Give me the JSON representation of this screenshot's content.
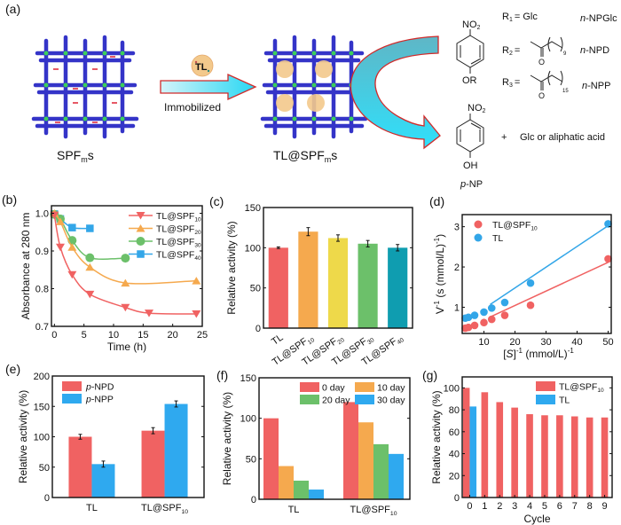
{
  "figure": {
    "panel_labels": [
      "(a)",
      "(b)",
      "(c)",
      "(d)",
      "(e)",
      "(f)",
      "(g)"
    ]
  },
  "scheme": {
    "left_label": "SPF",
    "left_label_sub": "m",
    "left_label_suffix": "s",
    "enzyme_label": "TL",
    "arrow_label": "Immobilized",
    "right_label": "TL@SPF",
    "right_label_sub": "m",
    "right_label_suffix": "s",
    "substrate_top": "NO",
    "substrate_top_sub": "2",
    "substrate_bottom": "OR",
    "r_groups": [
      {
        "r": "R",
        "sub": "1",
        "value": "= Glc",
        "name": "n-NPGlc",
        "name_italic": "n",
        "name_rest": "-NPGlc"
      },
      {
        "r": "R",
        "sub": "2",
        "value": "=",
        "chain": "9",
        "name": "n-NPD",
        "name_italic": "n",
        "name_rest": "-NPD"
      },
      {
        "r": "R",
        "sub": "3",
        "value": "=",
        "chain": "15",
        "name": "n-NPP",
        "name_italic": "n",
        "name_rest": "-NPP"
      }
    ],
    "carbonyl_o": "O",
    "product_top": "NO",
    "product_top_sub": "2",
    "product_bottom": "OH",
    "product_name_italic": "p",
    "product_name_rest": "-NP",
    "plus_text": "+",
    "byproduct": "Glc or aliphatic acid"
  },
  "chart_data": [
    {
      "id": "b",
      "type": "line",
      "xlabel": "Time (h)",
      "ylabel": "Absorbance at 280 nm",
      "xlim": [
        -0.5,
        25
      ],
      "ylim": [
        0.7,
        1.02
      ],
      "xticks": [
        0,
        5,
        10,
        15,
        20,
        25
      ],
      "yticks": [
        0.7,
        0.8,
        0.9,
        1.0
      ],
      "ytick_labels": [
        "0.7",
        "0.8",
        "0.9",
        "1.0"
      ],
      "legend_position": "top-right",
      "series": [
        {
          "name": "TL@SPF",
          "sub": "10",
          "color": "#f06262",
          "marker": "triangle-down",
          "x": [
            0,
            1,
            3,
            6,
            12,
            16,
            24
          ],
          "y": [
            0.995,
            0.91,
            0.837,
            0.785,
            0.75,
            0.735,
            0.733
          ]
        },
        {
          "name": "TL@SPF",
          "sub": "20",
          "color": "#f5a94e",
          "marker": "triangle-up",
          "x": [
            0,
            1,
            3,
            6,
            12,
            24
          ],
          "y": [
            1.0,
            0.978,
            0.91,
            0.857,
            0.815,
            0.821
          ]
        },
        {
          "name": "TL@SPF",
          "sub": "30",
          "color": "#6cc06a",
          "marker": "circle",
          "x": [
            0,
            1,
            3,
            6,
            12
          ],
          "y": [
            0.997,
            0.985,
            0.928,
            0.882,
            0.881
          ]
        },
        {
          "name": "TL@SPF",
          "sub": "40",
          "color": "#33a6e8",
          "marker": "square",
          "x": [
            0,
            1,
            3,
            6
          ],
          "y": [
            0.998,
            0.985,
            0.962,
            0.96
          ]
        }
      ]
    },
    {
      "id": "c",
      "type": "bar",
      "ylabel": "Relative activity (%)",
      "ylim": [
        0,
        150
      ],
      "yticks": [
        0,
        50,
        100,
        150
      ],
      "categories": [
        {
          "name": "TL",
          "sub": ""
        },
        {
          "name": "TL@SPF",
          "sub": "10"
        },
        {
          "name": "TL@SPF",
          "sub": "20"
        },
        {
          "name": "TL@SPF",
          "sub": "30"
        },
        {
          "name": "TL@SPF",
          "sub": "40"
        }
      ],
      "values": [
        100,
        120,
        112,
        105,
        100
      ],
      "errors": [
        1,
        5,
        4,
        4,
        4
      ],
      "colors": [
        "#f06262",
        "#f5a94e",
        "#eed94a",
        "#6cc06a",
        "#0f9db0"
      ]
    },
    {
      "id": "d",
      "type": "scatter",
      "xlabel_pre": "[",
      "xlabel_italic": "S",
      "xlabel_post": "]",
      "xlabel_sup": "-1",
      "xlabel_units": " (mmol/L)",
      "xlabel_units_sup": "-1",
      "ylabel": "V",
      "ylabel_sup": "-1",
      "ylabel_units": " (s (mmol/L)",
      "ylabel_units_sup": "-1",
      "ylabel_close": ")",
      "xlim": [
        3,
        51
      ],
      "ylim": [
        0.35,
        3.3
      ],
      "xticks": [
        10,
        20,
        30,
        40,
        50
      ],
      "yticks": [
        1,
        2,
        3
      ],
      "legend_position": "top-left",
      "series": [
        {
          "name": "TL@SPF",
          "sub": "10",
          "color": "#f06262",
          "x": [
            4,
            5,
            7,
            10,
            12.5,
            16.7,
            25,
            50
          ],
          "y": [
            0.48,
            0.5,
            0.55,
            0.62,
            0.7,
            0.8,
            1.05,
            2.2
          ],
          "fit": {
            "slope": 0.0357,
            "intercept": 0.33
          }
        },
        {
          "name": "TL",
          "sub": "",
          "color": "#33a6e8",
          "x": [
            4,
            5,
            7,
            10,
            12.5,
            16.7,
            25,
            50
          ],
          "y": [
            0.73,
            0.75,
            0.8,
            0.88,
            0.98,
            1.12,
            1.6,
            3.07
          ],
          "fit": {
            "slope": 0.0515,
            "intercept": 0.45
          }
        }
      ]
    },
    {
      "id": "e",
      "type": "bar",
      "ylabel": "Relative activity (%)",
      "ylim": [
        0,
        200
      ],
      "yticks": [
        0,
        50,
        100,
        150,
        200
      ],
      "categories": [
        {
          "name": "TL",
          "sub": ""
        },
        {
          "name": "TL@SPF",
          "sub": "10"
        }
      ],
      "legend_position": "top-left",
      "series": [
        {
          "name_italic": "p",
          "name_rest": "-NPD",
          "color": "#f06262",
          "values": [
            100,
            110
          ],
          "errors": [
            4,
            5
          ]
        },
        {
          "name_italic": "p",
          "name_rest": "-NPP",
          "color": "#2fa9ef",
          "values": [
            55,
            154
          ],
          "errors": [
            5,
            5
          ]
        }
      ]
    },
    {
      "id": "f",
      "type": "bar",
      "ylabel": "Relative activity (%)",
      "ylim": [
        0,
        150
      ],
      "yticks": [
        0,
        50,
        100,
        150
      ],
      "categories": [
        {
          "name": "TL",
          "sub": ""
        },
        {
          "name": "TL@SPF",
          "sub": "10"
        }
      ],
      "legend_position": "top-right",
      "series": [
        {
          "name": "0 day",
          "color": "#f06262",
          "values": [
            100,
            120
          ]
        },
        {
          "name": "10 day",
          "color": "#f5a94e",
          "values": [
            41,
            95
          ]
        },
        {
          "name": "20 day",
          "color": "#6cc06a",
          "values": [
            23,
            68
          ]
        },
        {
          "name": "30 day",
          "color": "#2fa9ef",
          "values": [
            12,
            56
          ]
        }
      ]
    },
    {
      "id": "g",
      "type": "bar",
      "xlabel": "Cycle",
      "ylabel": "Relative activity (%)",
      "ylim": [
        0,
        110
      ],
      "yticks": [
        0,
        20,
        40,
        60,
        80,
        100
      ],
      "categories": [
        "0",
        "1",
        "2",
        "3",
        "4",
        "5",
        "6",
        "7",
        "8",
        "9"
      ],
      "legend_position": "top-right",
      "series": [
        {
          "name": "TL@SPF",
          "sub": "10",
          "color": "#f06262",
          "values": [
            100,
            96,
            87,
            82,
            76,
            75,
            75,
            74,
            73,
            73
          ]
        },
        {
          "name": "TL",
          "sub": "",
          "color": "#2fa9ef",
          "values": [
            83,
            null,
            null,
            null,
            null,
            null,
            null,
            null,
            null,
            null
          ]
        }
      ]
    }
  ]
}
